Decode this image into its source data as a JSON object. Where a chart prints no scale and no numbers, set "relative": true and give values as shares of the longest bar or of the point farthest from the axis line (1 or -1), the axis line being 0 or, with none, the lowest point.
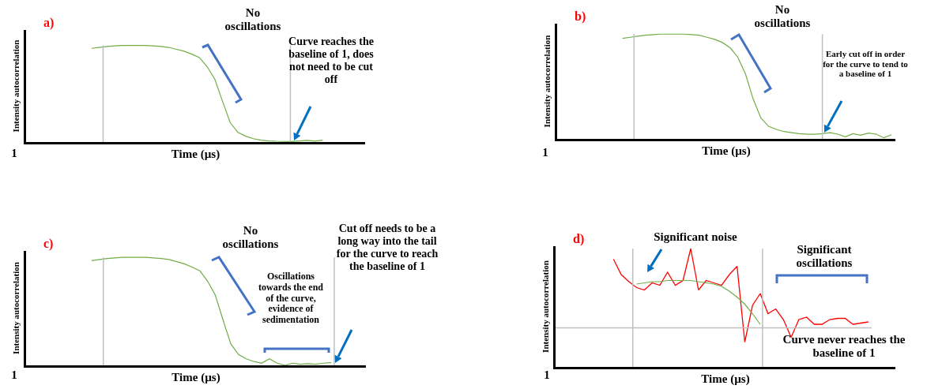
{
  "chart_data": [
    {
      "type": "line",
      "title": "a)",
      "xlabel": "Time (µs)",
      "ylabel": "Intensity autocorrelation",
      "relative": true,
      "line_style": "solid",
      "categories": [
        null,
        null,
        null,
        null,
        null,
        null,
        null,
        null,
        null,
        null,
        null,
        null,
        null,
        null,
        null,
        null,
        null,
        null,
        null,
        null,
        null,
        null,
        null,
        null,
        null,
        null,
        null,
        null,
        null,
        null,
        null,
        null,
        null,
        null,
        null,
        null,
        null,
        null,
        null,
        null,
        null,
        null,
        null,
        null
      ],
      "series": [
        {
          "color": "#70ad47",
          "values": [
            null,
            null,
            null,
            null,
            null,
            null,
            null,
            null,
            0.97,
            0.98,
            0.99,
            0.995,
            1,
            1,
            1,
            1,
            0.995,
            0.99,
            0.98,
            0.96,
            0.94,
            0.91,
            0.875,
            0.78,
            0.65,
            0.42,
            0.2,
            0.1,
            0.06,
            0.035,
            0.02,
            0.012,
            0.008,
            0.006,
            0.005,
            0.012,
            0.018,
            0.01,
            0.02,
            null,
            null,
            null,
            null,
            null
          ]
        }
      ],
      "annotations": [
        "1",
        "No oscillations",
        "Curve reaches the baseline of 1, does not need to be cut off"
      ]
    },
    {
      "type": "line",
      "title": "b)",
      "xlabel": "Time (µs)",
      "ylabel": "Intensity autocorrelation",
      "relative": true,
      "line_style": "solid",
      "categories": [
        null,
        null,
        null,
        null,
        null,
        null,
        null,
        null,
        null,
        null,
        null,
        null,
        null,
        null,
        null,
        null,
        null,
        null,
        null,
        null,
        null,
        null,
        null,
        null,
        null,
        null,
        null,
        null,
        null,
        null,
        null,
        null,
        null,
        null,
        null,
        null,
        null,
        null,
        null,
        null,
        null,
        null,
        null,
        null
      ],
      "series": [
        {
          "color": "#70ad47",
          "values": [
            null,
            null,
            null,
            null,
            null,
            null,
            null,
            null,
            0.96,
            0.97,
            0.98,
            0.99,
            0.995,
            1,
            1,
            1,
            1,
            0.995,
            0.99,
            0.97,
            0.95,
            0.92,
            0.87,
            0.78,
            0.62,
            0.38,
            0.2,
            0.12,
            0.09,
            0.07,
            0.06,
            0.05,
            0.045,
            0.045,
            0.05,
            0.06,
            0.045,
            0.02,
            0.05,
            0.035,
            0.055,
            0.045,
            0.01,
            0.04
          ]
        }
      ],
      "annotations": [
        "1",
        "No oscillations",
        "Early cut off in order for the curve to tend to a baseline of 1"
      ]
    },
    {
      "type": "line",
      "title": "c)",
      "xlabel": "Time (µs)",
      "ylabel": "Intensity autocorrelation",
      "relative": true,
      "line_style": "solid",
      "categories": [
        null,
        null,
        null,
        null,
        null,
        null,
        null,
        null,
        null,
        null,
        null,
        null,
        null,
        null,
        null,
        null,
        null,
        null,
        null,
        null,
        null,
        null,
        null,
        null,
        null,
        null,
        null,
        null,
        null,
        null,
        null,
        null,
        null,
        null,
        null,
        null,
        null,
        null,
        null,
        null,
        null,
        null,
        null,
        null
      ],
      "series": [
        {
          "color": "#70ad47",
          "values": [
            null,
            null,
            null,
            null,
            null,
            null,
            null,
            null,
            0.97,
            0.98,
            0.99,
            0.995,
            1,
            1,
            1,
            1,
            0.995,
            0.99,
            0.98,
            0.96,
            0.94,
            0.91,
            0.875,
            0.78,
            0.65,
            0.42,
            0.2,
            0.1,
            0.06,
            0.035,
            0.02,
            0.06,
            0.02,
            0,
            0.02,
            0.01,
            0.015,
            0.01,
            0.02,
            0.025,
            null,
            null,
            null,
            null
          ]
        }
      ],
      "annotations": [
        "1",
        "No oscillations",
        "Oscillations towards the end of the curve, evidence of sedimentation",
        "Cut off needs to be a long way into the tail for the curve to reach the baseline of 1"
      ]
    },
    {
      "type": "line",
      "title": "d)",
      "xlabel": "Time (µs)",
      "ylabel": "Intensity autocorrelation",
      "relative": true,
      "line_style": "solid",
      "categories": [
        null,
        null,
        null,
        null,
        null,
        null,
        null,
        null,
        null,
        null,
        null,
        null,
        null,
        null,
        null,
        null,
        null,
        null,
        null,
        null,
        null,
        null,
        null,
        null,
        null,
        null,
        null,
        null,
        null,
        null,
        null,
        null,
        null,
        null,
        null,
        null,
        null,
        null,
        null,
        null,
        null,
        null,
        null,
        null
      ],
      "series": [
        {
          "color": "#ff0000",
          "values": [
            null,
            null,
            null,
            null,
            null,
            null,
            null,
            0.91,
            0.78,
            0.72,
            0.67,
            0.65,
            0.71,
            0.69,
            0.8,
            0.69,
            0.73,
            1,
            0.65,
            0.73,
            0.71,
            0.69,
            0.78,
            0.85,
            0.21,
            0.52,
            0.62,
            0.45,
            0.49,
            0.4,
            0.25,
            0.4,
            0.42,
            0.36,
            0.36,
            0.4,
            0.41,
            0.41,
            0.36,
            0.37,
            0.38,
            null,
            null,
            null
          ]
        },
        {
          "color": "#70ad47",
          "values": [
            null,
            null,
            null,
            null,
            null,
            null,
            null,
            null,
            null,
            null,
            0.7,
            0.71,
            0.72,
            0.72,
            0.73,
            0.73,
            0.73,
            0.73,
            0.72,
            0.71,
            0.7,
            0.68,
            0.64,
            0.59,
            0.53,
            0.45,
            0.36,
            null,
            null,
            null,
            null,
            null,
            null,
            null,
            null,
            null,
            null,
            null,
            null,
            null,
            null,
            null,
            null,
            null
          ]
        }
      ],
      "ref_lines": [
        {
          "axis": "y",
          "value": 0.33,
          "color": "#bfbfbf"
        }
      ],
      "annotations": [
        "1",
        "Significant noise",
        "Significant oscillations",
        "Curve never reaches the baseline of 1"
      ]
    }
  ]
}
